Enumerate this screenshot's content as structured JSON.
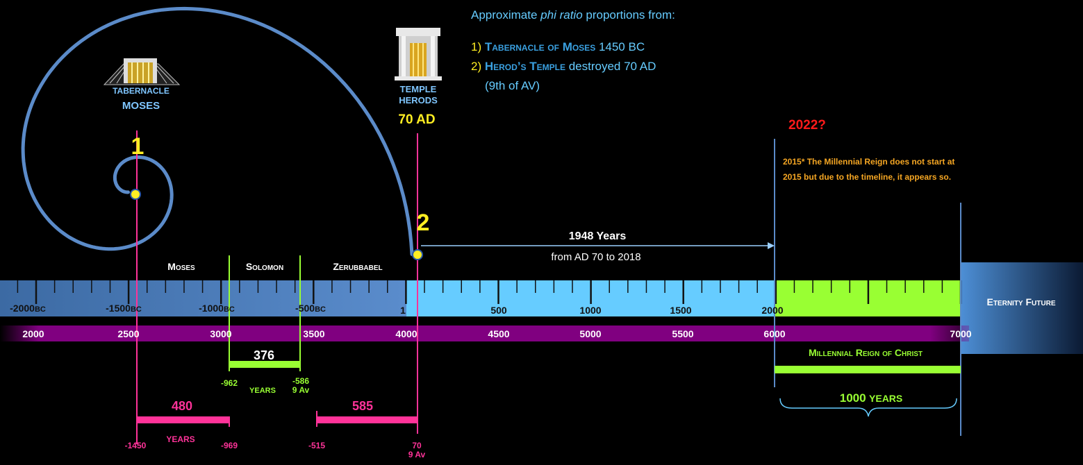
{
  "illustrations": {
    "tabernacle": {
      "label": "TABERNACLE",
      "sublabel": "MOSES"
    },
    "temple": {
      "label": "TEMPLE",
      "sublabel": "HERODS",
      "date": "70 AD"
    }
  },
  "markers": [
    "1",
    "2"
  ],
  "info": {
    "intro": [
      "Approximate ",
      "phi ratio",
      " proportions from:"
    ],
    "items": [
      {
        "number": "1)",
        "name": "Tabernacle of Moses",
        "detail": "1450 BC"
      },
      {
        "number": "2)",
        "name": "Herod’s Temple",
        "detail": "destroyed 70 AD",
        "note": "(9th of AV)"
      }
    ]
  },
  "projection": "2022?",
  "note": "2015* The Millennial Reign does not start at 2015 but due to the timeline, it appears so.",
  "span": {
    "title": "1948 Years",
    "subtitle": "from AD 70 to 2018"
  },
  "eras": [
    "Moses",
    "Solomon",
    "Zerubbabel"
  ],
  "timeline": {
    "bc_ticks": [
      -2000,
      -1500,
      -1000,
      -500
    ],
    "bc_suffix": "BC",
    "ad_ticks": [
      1,
      500,
      1000,
      1500,
      2000
    ],
    "anno_mundi": [
      2000,
      2500,
      3000,
      3500,
      4000,
      4500,
      5000,
      5500,
      6000,
      7000
    ],
    "eternity": "Eternity Future"
  },
  "periods": {
    "moses": {
      "years": 480,
      "unit": "YEARS",
      "start": -1450,
      "end": -969
    },
    "solomon": {
      "years": 376,
      "unit": "YEARS",
      "start": -962,
      "end": -586,
      "end_note": "9 Av"
    },
    "zerubbabel": {
      "years": 585,
      "start": -515,
      "end": 70,
      "end_note": "9 Av"
    },
    "millennium": {
      "title": "Millennial Reign of Christ",
      "years": 1000,
      "unit": "YEARS"
    }
  }
}
